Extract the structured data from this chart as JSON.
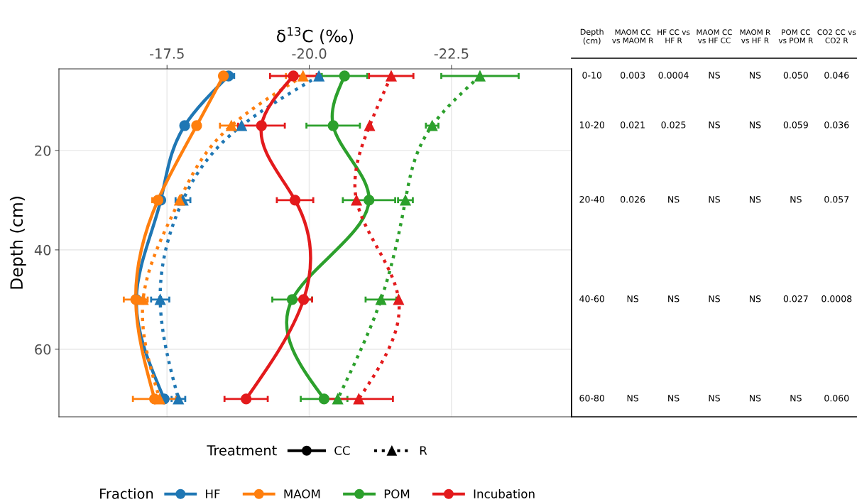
{
  "chart_data": [
    {
      "type": "line",
      "orientation": "horizontal",
      "xlabel": "δ$^{13}$C (‰)",
      "ylabel": "Depth (cm)",
      "xlim": [
        -15.6,
        -24.61
      ],
      "xticks": [
        {
          "value": -17.5,
          "label": "-17.5"
        },
        {
          "value": -20.0,
          "label": "-20.0"
        },
        {
          "value": -22.5,
          "label": "-22.5"
        }
      ],
      "ylim": [
        73.6,
        3.57
      ],
      "yticks": [
        20,
        40,
        60
      ],
      "grid": true,
      "legend": "bottom",
      "legend_title": [
        "Treatment",
        "Fraction"
      ],
      "annotations": [
        "CC",
        "R"
      ],
      "series": [
        {
          "name": "HF",
          "color": "#1f77b4",
          "marker": "circle",
          "line_style": "solid",
          "x": [
            5,
            15,
            30,
            50,
            70
          ],
          "values": [
            -18.58,
            -17.81,
            -17.39,
            -16.96,
            -17.45
          ],
          "errors": [
            0.1,
            null,
            null,
            null,
            null
          ]
        },
        {
          "color": "#1f77b4",
          "marker": "triangle",
          "line_style": "dotted",
          "x": [
            5,
            15,
            30,
            50,
            70
          ],
          "values": [
            -20.17,
            -18.81,
            -17.78,
            -17.38,
            -17.7
          ],
          "errors": [
            null,
            null,
            0.13,
            0.16,
            0.12
          ]
        },
        {
          "name": "MAOM",
          "color": "#ff7f0e",
          "marker": "circle",
          "line_style": "solid",
          "x": [
            5,
            15,
            30,
            50,
            70
          ],
          "values": [
            -18.49,
            -18.02,
            -17.34,
            -16.95,
            -17.28
          ],
          "errors": [
            null,
            null,
            0.1,
            0.21,
            0.38
          ]
        },
        {
          "color": "#ff7f0e",
          "marker": "triangle",
          "line_style": "dotted",
          "x": [
            5,
            15,
            30,
            50,
            70
          ],
          "values": [
            -19.89,
            -18.63,
            -17.72,
            -17.08,
            -17.37
          ],
          "errors": [
            0.3,
            0.2,
            null,
            null,
            null
          ]
        },
        {
          "name": "POM",
          "color": "#2ca02c",
          "marker": "circle",
          "line_style": "solid",
          "x": [
            5,
            15,
            30,
            50,
            70
          ],
          "values": [
            -20.62,
            -20.42,
            -21.05,
            -19.7,
            -20.26
          ],
          "errors": [
            0.4,
            0.47,
            0.46,
            0.35,
            0.41
          ]
        },
        {
          "color": "#2ca02c",
          "marker": "triangle",
          "line_style": "dotted",
          "x": [
            5,
            15,
            30,
            50,
            70
          ],
          "values": [
            -23.0,
            -22.16,
            -21.69,
            -21.26,
            -20.5
          ],
          "errors": [
            0.68,
            0.11,
            0.13,
            0.27,
            null
          ]
        },
        {
          "name": "Incubation",
          "color": "#e31a1c",
          "marker": "circle",
          "line_style": "solid",
          "x": [
            5,
            15,
            30,
            50,
            70
          ],
          "values": [
            -19.72,
            -19.16,
            -19.75,
            -19.9,
            -18.89
          ],
          "errors": [
            0.41,
            0.41,
            0.32,
            0.15,
            0.38
          ]
        },
        {
          "color": "#e31a1c",
          "marker": "triangle",
          "line_style": "dotted",
          "x": [
            5,
            15,
            30,
            50,
            70
          ],
          "values": [
            -21.44,
            -21.06,
            -20.83,
            -21.57,
            -20.87
          ],
          "errors": [
            0.39,
            null,
            null,
            null,
            0.6
          ]
        }
      ]
    },
    {
      "type": "other",
      "ylabel": "Depth\n(cm)",
      "categories": [
        "MAOM CC\nvs MAOM R",
        "HF CC vs\nHF R",
        "MAOM CC\nvs HF CC",
        "MAOM R\nvs HF R",
        "POM CC\nvs POM R",
        "CO2 CC vs\nCO2 R"
      ],
      "y_categories": [
        "0-10",
        "10-20",
        "20-40",
        "40-60",
        "60-80"
      ],
      "cell_labels": [
        [
          "0.003",
          "0.0004",
          "NS",
          "NS",
          "0.050",
          "0.046"
        ],
        [
          "0.021",
          "0.025",
          "NS",
          "NS",
          "0.059",
          "0.036"
        ],
        [
          "0.026",
          "NS",
          "NS",
          "NS",
          "NS",
          "0.057"
        ],
        [
          "NS",
          "NS",
          "NS",
          "NS",
          "0.027",
          "0.0008"
        ],
        [
          "NS",
          "NS",
          "NS",
          "NS",
          "NS",
          "0.060"
        ]
      ]
    }
  ]
}
